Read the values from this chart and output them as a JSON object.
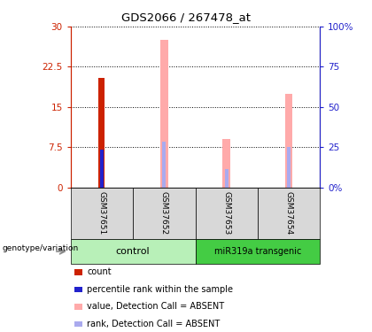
{
  "title": "GDS2066 / 267478_at",
  "samples": [
    "GSM37651",
    "GSM37652",
    "GSM37653",
    "GSM37654"
  ],
  "ylim_left": [
    0,
    30
  ],
  "ylim_right": [
    0,
    100
  ],
  "yticks_left": [
    0,
    7.5,
    15,
    22.5,
    30
  ],
  "yticks_right": [
    0,
    25,
    50,
    75,
    100
  ],
  "ytick_labels_left": [
    "0",
    "7.5",
    "15",
    "22.5",
    "30"
  ],
  "ytick_labels_right": [
    "0%",
    "25",
    "50",
    "75",
    "100%"
  ],
  "count_bars": [
    20.5,
    null,
    null,
    null
  ],
  "rank_bars": [
    7.0,
    null,
    null,
    null
  ],
  "value_absent_bars": [
    null,
    27.5,
    9.0,
    17.5
  ],
  "rank_absent_bars": [
    null,
    8.5,
    3.5,
    7.5
  ],
  "color_count": "#cc2200",
  "color_rank": "#2222cc",
  "color_value_absent": "#ffaaaa",
  "color_rank_absent": "#aaaaee",
  "color_group_control": "#b8f0b8",
  "color_group_transgenic": "#44cc44",
  "color_sample_box": "#d8d8d8",
  "legend_items": [
    {
      "label": "count",
      "color": "#cc2200"
    },
    {
      "label": "percentile rank within the sample",
      "color": "#2222cc"
    },
    {
      "label": "value, Detection Call = ABSENT",
      "color": "#ffaaaa"
    },
    {
      "label": "rank, Detection Call = ABSENT",
      "color": "#aaaaee"
    }
  ]
}
